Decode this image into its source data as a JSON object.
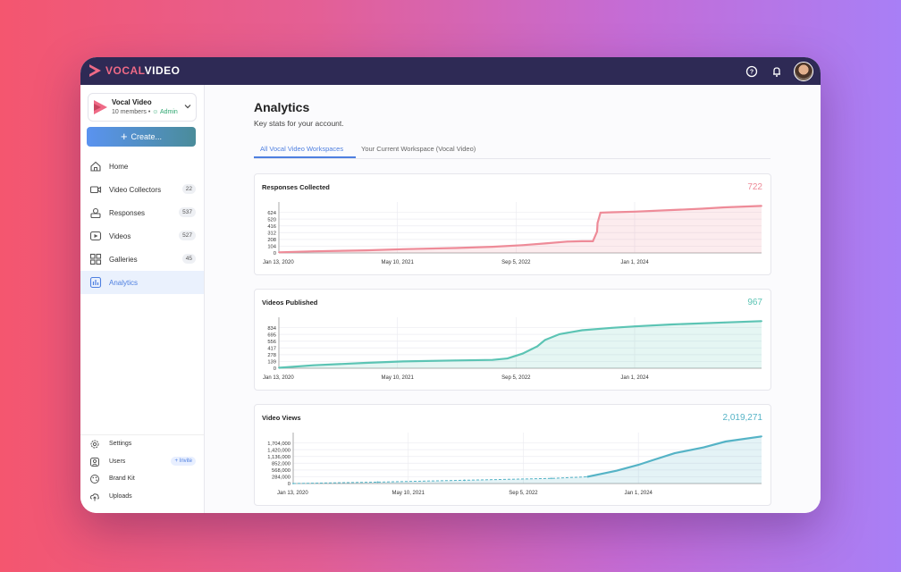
{
  "app": {
    "logo_text_prefix": "VOCAL",
    "logo_text_suffix": "VIDEO"
  },
  "workspace": {
    "name": "Vocal Video",
    "members": "10 members •",
    "role": "Admin"
  },
  "create_label": "Create...",
  "nav": [
    {
      "label": "Home",
      "icon": "home-icon",
      "count": ""
    },
    {
      "label": "Video Collectors",
      "icon": "video-camera-icon",
      "count": "22"
    },
    {
      "label": "Responses",
      "icon": "inbox-icon",
      "count": "537"
    },
    {
      "label": "Videos",
      "icon": "play-icon",
      "count": "527"
    },
    {
      "label": "Galleries",
      "icon": "grid-icon",
      "count": "45"
    },
    {
      "label": "Analytics",
      "icon": "chart-icon",
      "count": ""
    }
  ],
  "bottom_nav": [
    {
      "label": "Settings",
      "icon": "gear-icon"
    },
    {
      "label": "Users",
      "icon": "user-icon"
    },
    {
      "label": "Brand Kit",
      "icon": "palette-icon"
    },
    {
      "label": "Uploads",
      "icon": "upload-icon"
    }
  ],
  "invite_label": "+ Invite",
  "page": {
    "title": "Analytics",
    "subtitle": "Key stats for your account."
  },
  "tabs": [
    "All Vocal Video Workspaces",
    "Your Current Workspace (Vocal Video)"
  ],
  "colors": {
    "responses": "#ee8b98",
    "videos": "#5cc4b4",
    "views": "#55b3c6",
    "accent": "#4e7fe0"
  },
  "chart_data": [
    {
      "type": "area",
      "title": "Responses Collected",
      "total": "722",
      "x_tick_labels": [
        "Jan 13, 2020",
        "May 10, 2021",
        "Sep  5, 2022",
        "Jan  1, 2024"
      ],
      "y_tick_labels": [
        "0",
        "104",
        "208",
        "312",
        "416",
        "520",
        "624"
      ],
      "ylim": [
        0,
        728
      ],
      "x_date_range": [
        "2020-01-13",
        "2025-06-01"
      ],
      "series": [
        {
          "dates": [
            "2020-01-13",
            "2020-06-01",
            "2021-01-01",
            "2021-06-01",
            "2022-01-01",
            "2022-06-01",
            "2022-10-01",
            "2023-01-01",
            "2023-04-01",
            "2023-06-01",
            "2023-07-15",
            "2023-08-01",
            "2023-08-03",
            "2023-08-15",
            "2023-10-01",
            "2024-01-01",
            "2024-06-01",
            "2024-10-01",
            "2025-01-01",
            "2025-06-01"
          ],
          "values": [
            10,
            25,
            40,
            58,
            75,
            95,
            120,
            145,
            175,
            180,
            180,
            330,
            460,
            620,
            625,
            635,
            660,
            680,
            700,
            722
          ]
        }
      ]
    },
    {
      "type": "area",
      "title": "Videos Published",
      "total": "967",
      "x_tick_labels": [
        "Jan 13, 2020",
        "May 10, 2021",
        "Sep  5, 2022",
        "Jan  1, 2024"
      ],
      "y_tick_labels": [
        "0",
        "139",
        "278",
        "417",
        "556",
        "695",
        "834"
      ],
      "ylim": [
        0,
        973
      ],
      "x_date_range": [
        "2020-01-13",
        "2025-06-01"
      ],
      "series": [
        {
          "dates": [
            "2020-01-13",
            "2020-06-01",
            "2021-01-01",
            "2021-06-01",
            "2022-01-01",
            "2022-06-01",
            "2022-08-01",
            "2022-10-01",
            "2022-12-01",
            "2023-01-01",
            "2023-03-01",
            "2023-06-01",
            "2023-10-01",
            "2024-01-01",
            "2024-06-01",
            "2025-01-01",
            "2025-06-01"
          ],
          "values": [
            10,
            60,
            110,
            140,
            160,
            170,
            200,
            300,
            450,
            580,
            700,
            780,
            830,
            860,
            900,
            940,
            967
          ]
        }
      ]
    },
    {
      "type": "area",
      "title": "Video Views",
      "total": "2,019,271",
      "x_tick_labels": [
        "Jan 13, 2020",
        "May 10, 2021",
        "Sep  5, 2022",
        "Jan  1, 2024"
      ],
      "y_tick_labels": [
        "0",
        "284,000",
        "568,000",
        "852,000",
        "1,136,000",
        "1,420,000",
        "1,704,000"
      ],
      "ylim": [
        0,
        2030000
      ],
      "x_date_range": [
        "2020-01-13",
        "2025-06-01"
      ],
      "series": [
        {
          "dates": [
            "2020-01-13",
            "2021-01-01",
            "2022-01-01",
            "2023-01-01",
            "2023-06-01",
            "2023-10-01",
            "2024-01-01",
            "2024-03-01",
            "2024-06-01",
            "2024-10-01",
            "2025-01-01",
            "2025-06-01"
          ],
          "values": [
            0,
            60000,
            140000,
            220000,
            290000,
            550000,
            800000,
            1000000,
            1300000,
            1550000,
            1800000,
            2019271
          ]
        }
      ]
    }
  ]
}
